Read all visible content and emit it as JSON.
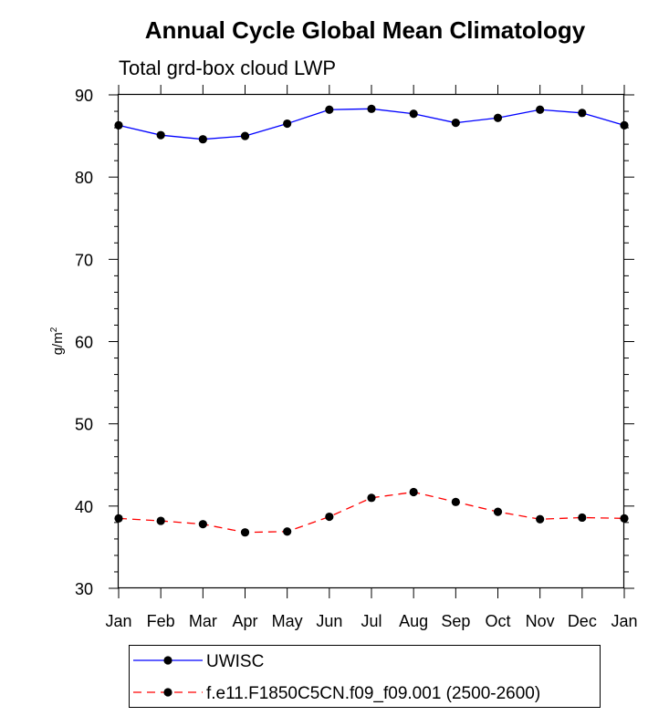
{
  "chart_data": {
    "type": "line",
    "title": "Annual Cycle Global Mean Climatology",
    "subtitle": "Total grd-box cloud LWP",
    "xlabel": "",
    "ylabel": "g/m",
    "ylabel_superscript": "2",
    "categories": [
      "Jan",
      "Feb",
      "Mar",
      "Apr",
      "May",
      "Jun",
      "Jul",
      "Aug",
      "Sep",
      "Oct",
      "Nov",
      "Dec",
      "Jan"
    ],
    "ylim": [
      30,
      90
    ],
    "yticks": [
      30,
      40,
      50,
      60,
      70,
      80,
      90
    ],
    "ytick_labels": [
      "30",
      "40",
      "50",
      "60",
      "70",
      "80",
      "90"
    ],
    "legend_position": "bottom",
    "series": [
      {
        "name": "UWISC",
        "color": "#0000ff",
        "style": "solid",
        "values": [
          86.3,
          85.1,
          84.6,
          85.0,
          86.5,
          88.2,
          88.3,
          87.7,
          86.6,
          87.2,
          88.2,
          87.8,
          86.3
        ]
      },
      {
        "name": "f.e11.F1850C5CN.f09_f09.001 (2500-2600)",
        "color": "#ff0000",
        "style": "dashed",
        "values": [
          38.5,
          38.2,
          37.8,
          36.8,
          36.9,
          38.7,
          41.0,
          41.7,
          40.5,
          39.3,
          38.4,
          38.6,
          38.5
        ]
      }
    ]
  }
}
